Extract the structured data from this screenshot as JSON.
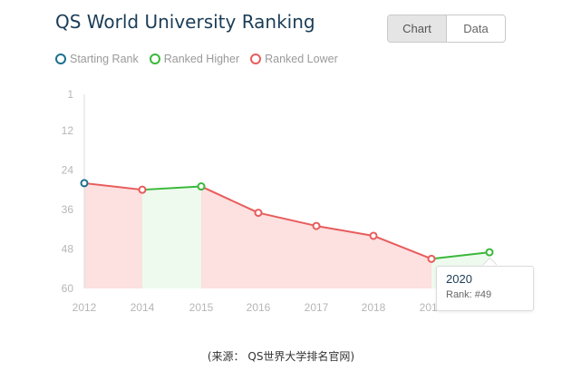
{
  "header": {
    "title": "QS World University Ranking",
    "tabs": [
      {
        "label": "Chart",
        "active": true
      },
      {
        "label": "Data",
        "active": false
      }
    ]
  },
  "legend": {
    "items": [
      {
        "label": "Starting Rank",
        "color": "#1c6f8c",
        "icon": "circle-marker-icon"
      },
      {
        "label": "Ranked Higher",
        "color": "#3ab83a",
        "icon": "circle-marker-icon"
      },
      {
        "label": "Ranked Lower",
        "color": "#e85c5c",
        "icon": "circle-marker-icon"
      }
    ]
  },
  "tooltip": {
    "year": "2020",
    "rank_text": "Rank: #49"
  },
  "source": "(来源： QS世界大学排名官网)",
  "colors": {
    "higher": "#3ab83a",
    "lower": "#e85c5c",
    "start": "#1c6f8c",
    "fill_higher": "#eefaee",
    "fill_lower": "#fde0e0",
    "axis": "#dddddd",
    "tick_text": "#b6b6b6"
  },
  "chart_data": {
    "type": "line",
    "title": "QS World University Ranking",
    "x": [
      "2012",
      "2014",
      "2015",
      "2016",
      "2017",
      "2018",
      "2019",
      "2020"
    ],
    "y_tick_labels": [
      "1",
      "12",
      "24",
      "36",
      "48",
      "60"
    ],
    "y_ticks": [
      1,
      12,
      24,
      36,
      48,
      60
    ],
    "ylim": [
      1,
      60
    ],
    "y_inverted": true,
    "series": [
      {
        "values": [
          28,
          30,
          29,
          37,
          41,
          44,
          51,
          49
        ]
      }
    ],
    "tooltip_point": {
      "x": "2020",
      "rank": 49
    }
  }
}
